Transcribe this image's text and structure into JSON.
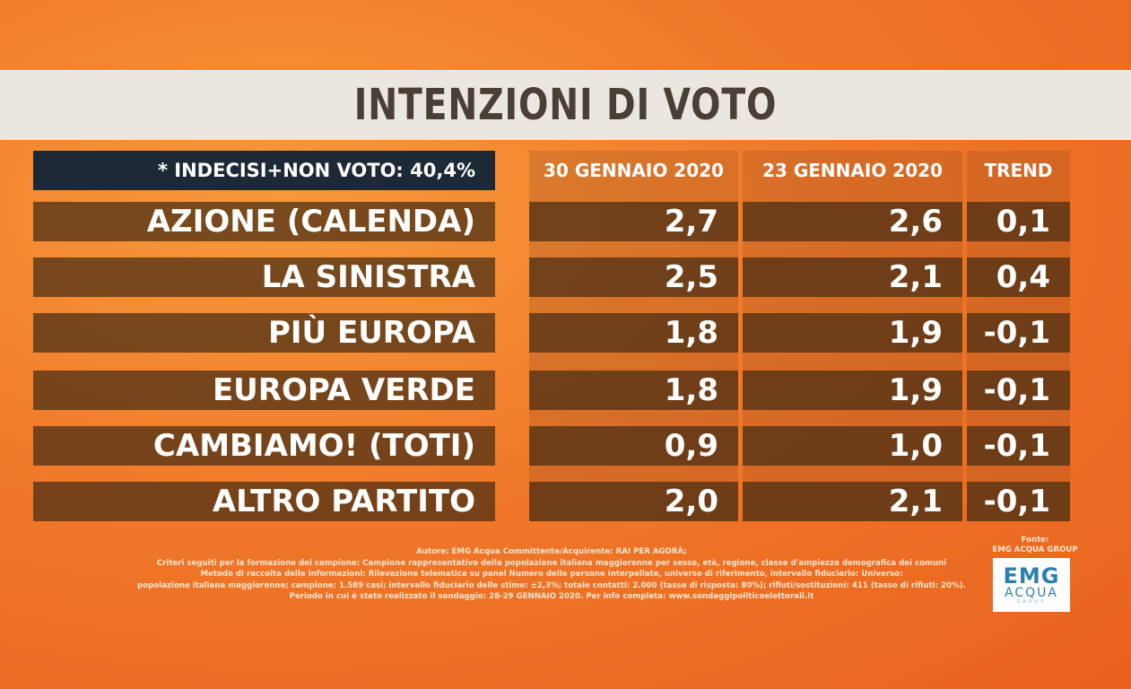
{
  "title": "INTENZIONI DI VOTO",
  "note": "* INDECISI+NON VOTO: 40,4%",
  "columns": [
    "30 GENNAIO 2020",
    "23 GENNAIO 2020",
    "TREND"
  ],
  "rows": [
    {
      "party": "AZIONE (CALENDA)",
      "jan30": "2,7",
      "jan23": "2,6",
      "trend": "0,1"
    },
    {
      "party": "LA SINISTRA",
      "jan30": "2,5",
      "jan23": "2,1",
      "trend": "0,4"
    },
    {
      "party": "PIÙ EUROPA",
      "jan30": "1,8",
      "jan23": "1,9",
      "trend": "-0,1"
    },
    {
      "party": "EUROPA VERDE",
      "jan30": "1,8",
      "jan23": "1,9",
      "trend": "-0,1"
    },
    {
      "party": "CAMBIAMO! (TOTI)",
      "jan30": "0,9",
      "jan23": "1,0",
      "trend": "-0,1"
    },
    {
      "party": "ALTRO PARTITO",
      "jan30": "2,0",
      "jan23": "2,1",
      "trend": "-0,1"
    }
  ],
  "footer": [
    "Autore: EMG Acqua Committente/Acquirente: RAI PER AGORÀ;",
    "Criteri seguiti per la formazione del campione: Campione rappresentativo della popolazione italiana maggiorenne per sesso, età, regione, classe d'ampiezza demografica dei comuni",
    "Metodo di raccolta delle informazioni: Rilevazione telematica su panel Numero delle persone interpellate, universo di riferimento, intervallo fiduciario: Universo:",
    "popolazione italiana maggiorenne; campione: 1.589 casi; intervallo fiduciario delle stime: ±2,3%; totale contatti: 2.000 (tasso di risposta: 80%); rifiuti/sostituzioni: 411 (tasso di rifiuti: 20%).",
    "Periodo in cui è stato realizzato il sondaggio: 28-29 GENNAIO 2020. Per info completa: www.sondaggipoliticoelettorali.it"
  ],
  "source": {
    "label": "Fonte:",
    "name": "EMG ACQUA GROUP"
  },
  "logo": {
    "line1": "EMG",
    "line2": "ACQUA",
    "line3": "GROUP"
  }
}
